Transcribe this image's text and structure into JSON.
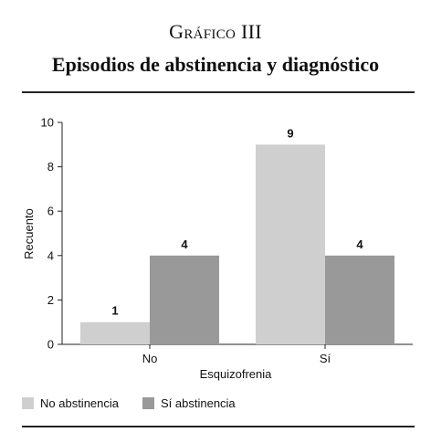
{
  "figure": {
    "label": "Gráfico III",
    "title": "Episodios de abstinencia y diagnóstico"
  },
  "chart_data": {
    "type": "bar",
    "categories": [
      "No",
      "Sí"
    ],
    "series": [
      {
        "name": "No abstinencia",
        "values": [
          1,
          9
        ],
        "color": "#cfcfcf"
      },
      {
        "name": "Sí abstinencia",
        "values": [
          4,
          4
        ],
        "color": "#999999"
      }
    ],
    "xlabel": "Esquizofrenia",
    "ylabel": "Recuento",
    "ylim": [
      0,
      10
    ],
    "yticks": [
      0,
      2,
      4,
      6,
      8,
      10
    ],
    "grid": false,
    "legend_position": "bottom-left",
    "data_labels": true
  }
}
